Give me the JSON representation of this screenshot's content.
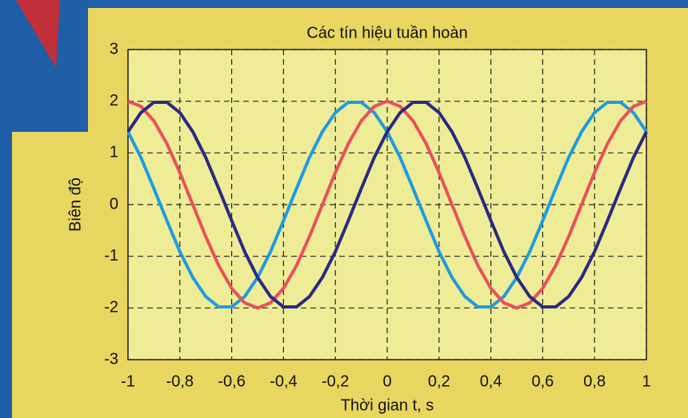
{
  "chart_data": {
    "type": "line",
    "title": "Các tín hiệu tuần hoàn",
    "x_label": "Thời gian t, s",
    "y_label": "Biên độ",
    "x": [
      -1,
      -0.95,
      -0.9,
      -0.85,
      -0.8,
      -0.75,
      -0.7,
      -0.65,
      -0.6,
      -0.55,
      -0.5,
      -0.45,
      -0.4,
      -0.35,
      -0.3,
      -0.25,
      -0.2,
      -0.15,
      -0.1,
      -0.05,
      0,
      0.05,
      0.1,
      0.15,
      0.2,
      0.25,
      0.3,
      0.35,
      0.4,
      0.45,
      0.5,
      0.55,
      0.6,
      0.65,
      0.7,
      0.75,
      0.8,
      0.85,
      0.9,
      0.95,
      1
    ],
    "series": [
      {
        "color": "#1e9be0",
        "values": [
          1.41,
          0.91,
          0.31,
          -0.31,
          -0.91,
          -1.41,
          -1.78,
          -1.98,
          -1.98,
          -1.78,
          -1.41,
          -0.91,
          -0.31,
          0.31,
          0.91,
          1.41,
          1.78,
          1.98,
          1.98,
          1.78,
          1.41,
          0.91,
          0.31,
          -0.31,
          -0.91,
          -1.41,
          -1.78,
          -1.98,
          -1.98,
          -1.78,
          -1.41,
          -0.91,
          -0.31,
          0.31,
          0.91,
          1.41,
          1.78,
          1.98,
          1.98,
          1.78,
          1.41
        ]
      },
      {
        "color": "#e8505a",
        "values": [
          2,
          1.9,
          1.62,
          1.18,
          0.62,
          0,
          -0.62,
          -1.18,
          -1.62,
          -1.9,
          -2,
          -1.9,
          -1.62,
          -1.18,
          -0.62,
          0,
          0.62,
          1.18,
          1.62,
          1.9,
          2,
          1.9,
          1.62,
          1.18,
          0.62,
          0,
          -0.62,
          -1.18,
          -1.62,
          -1.9,
          -2,
          -1.9,
          -1.62,
          -1.18,
          -0.62,
          0,
          0.62,
          1.18,
          1.62,
          1.9,
          2
        ]
      },
      {
        "color": "#2a2a80",
        "values": [
          1.41,
          1.78,
          1.98,
          1.98,
          1.78,
          1.41,
          0.91,
          0.31,
          -0.31,
          -0.91,
          -1.41,
          -1.78,
          -1.98,
          -1.98,
          -1.78,
          -1.41,
          -0.91,
          -0.31,
          0.31,
          0.91,
          1.41,
          1.78,
          1.98,
          1.98,
          1.78,
          1.41,
          0.91,
          0.31,
          -0.31,
          -0.91,
          -1.41,
          -1.78,
          -1.98,
          -1.98,
          -1.78,
          -1.41,
          -0.91,
          -0.31,
          0.31,
          0.91,
          1.41
        ]
      }
    ],
    "xlim": [
      -1,
      1
    ],
    "xticks": [
      -1,
      {
        "value": -0.8,
        "label": "-0,8"
      },
      {
        "value": -0.6,
        "label": "-0,6"
      },
      {
        "value": -0.4,
        "label": "-0,4"
      },
      {
        "value": -0.2,
        "label": "-0,2"
      },
      0,
      {
        "value": 0.2,
        "label": "0,2"
      },
      {
        "value": 0.4,
        "label": "0,4"
      },
      {
        "value": 0.6,
        "label": "0,6"
      },
      {
        "value": 0.8,
        "label": "0,8"
      },
      1
    ],
    "ylim": [
      -3,
      3
    ],
    "yticks": [
      -3,
      -2,
      -1,
      0,
      1,
      2,
      3
    ],
    "grid": true
  }
}
